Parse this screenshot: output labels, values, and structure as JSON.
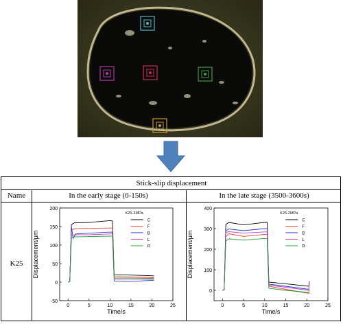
{
  "photo": {
    "markers": [
      {
        "id": "top",
        "color": "#4fb8c8"
      },
      {
        "id": "left",
        "color": "#b03aa8"
      },
      {
        "id": "center",
        "color": "#cc2b5a"
      },
      {
        "id": "right",
        "color": "#3f9b4d"
      },
      {
        "id": "bottom",
        "color": "#c79a3c"
      }
    ]
  },
  "arrow": {
    "color": "#4f81bd",
    "icon": "down-arrow-icon"
  },
  "table": {
    "title": "Stick-slip displacement",
    "col_name": "Name",
    "col_early": "In the early stage (0-150s)",
    "col_late": "In the late stage (3500-3600s)",
    "row_name": "K25"
  },
  "chart_data": [
    {
      "type": "line",
      "annotation": "K25-2MPa",
      "xlabel": "Time/s",
      "ylabel": "Displacement/μm",
      "xlim": [
        -2,
        25
      ],
      "ylim": [
        -50,
        200
      ],
      "xticks": [
        "0",
        "5",
        "10",
        "15",
        "20",
        "25"
      ],
      "yticks": [
        "-50",
        "0",
        "50",
        "100",
        "150",
        "200"
      ],
      "series": [
        {
          "name": "C",
          "color": "#000000",
          "points": [
            [
              0,
              0
            ],
            [
              0.4,
              2
            ],
            [
              0.8,
              155
            ],
            [
              1.5,
              160
            ],
            [
              5,
              161
            ],
            [
              10,
              166
            ],
            [
              10.6,
              165
            ],
            [
              11,
              20
            ],
            [
              15,
              19
            ],
            [
              20.5,
              17
            ]
          ]
        },
        {
          "name": "F",
          "color": "#e8402a",
          "points": [
            [
              0,
              0
            ],
            [
              0.4,
              2
            ],
            [
              0.8,
              140
            ],
            [
              1.5,
              144
            ],
            [
              5,
              145
            ],
            [
              10,
              146
            ],
            [
              10.6,
              146
            ],
            [
              11,
              15
            ],
            [
              15,
              14
            ],
            [
              20.5,
              12
            ]
          ]
        },
        {
          "name": "B",
          "color": "#2437d4",
          "points": [
            [
              0,
              0
            ],
            [
              0.4,
              2
            ],
            [
              0.8,
              150
            ],
            [
              1.2,
              118
            ],
            [
              1.8,
              130
            ],
            [
              5,
              132
            ],
            [
              10,
              135
            ],
            [
              10.6,
              135
            ],
            [
              11,
              3
            ],
            [
              15,
              2
            ],
            [
              20.5,
              5
            ]
          ]
        },
        {
          "name": "L",
          "color": "#c23fc2",
          "points": [
            [
              0,
              0
            ],
            [
              0.4,
              2
            ],
            [
              0.8,
              125
            ],
            [
              1.5,
              128
            ],
            [
              5,
              128
            ],
            [
              10,
              130
            ],
            [
              10.6,
              130
            ],
            [
              11,
              8
            ],
            [
              15,
              8
            ],
            [
              20.5,
              7
            ]
          ]
        },
        {
          "name": "R",
          "color": "#1f9a2e",
          "points": [
            [
              0,
              0
            ],
            [
              0.4,
              2
            ],
            [
              0.8,
              120
            ],
            [
              1.5,
              122
            ],
            [
              5,
              123
            ],
            [
              10,
              124
            ],
            [
              10.6,
              124
            ],
            [
              11,
              11
            ],
            [
              15,
              11
            ],
            [
              20.5,
              10
            ]
          ]
        }
      ]
    },
    {
      "type": "line",
      "annotation": "K25-2MPa",
      "xlabel": "Time/s",
      "ylabel": "Displacement/μm",
      "xlim": [
        -2,
        25
      ],
      "ylim": [
        -50,
        400
      ],
      "xticks": [
        "0",
        "5",
        "10",
        "15",
        "20",
        "25"
      ],
      "yticks": [
        "0",
        "100",
        "200",
        "300",
        "400"
      ],
      "series": [
        {
          "name": "C",
          "color": "#000000",
          "points": [
            [
              0,
              0
            ],
            [
              0.4,
              3
            ],
            [
              0.8,
              320
            ],
            [
              1.5,
              330
            ],
            [
              5,
              318
            ],
            [
              10,
              330
            ],
            [
              10.6,
              330
            ],
            [
              11,
              40
            ],
            [
              15,
              32
            ],
            [
              20.5,
              20
            ],
            [
              20.6,
              45
            ]
          ]
        },
        {
          "name": "F",
          "color": "#e8402a",
          "points": [
            [
              0,
              0
            ],
            [
              0.4,
              3
            ],
            [
              0.8,
              260
            ],
            [
              1.5,
              275
            ],
            [
              5,
              262
            ],
            [
              10,
              272
            ],
            [
              10.6,
              272
            ],
            [
              11,
              20
            ],
            [
              15,
              5
            ],
            [
              20.5,
              -15
            ],
            [
              20.6,
              35
            ]
          ]
        },
        {
          "name": "B",
          "color": "#2437d4",
          "points": [
            [
              0,
              0
            ],
            [
              0.4,
              3
            ],
            [
              0.8,
              290
            ],
            [
              1.5,
              298
            ],
            [
              5,
              290
            ],
            [
              10,
              300
            ],
            [
              10.6,
              300
            ],
            [
              11,
              30
            ],
            [
              15,
              20
            ],
            [
              20.5,
              5
            ]
          ]
        },
        {
          "name": "L",
          "color": "#c23fc2",
          "points": [
            [
              0,
              0
            ],
            [
              0.4,
              3
            ],
            [
              0.8,
              280
            ],
            [
              1.5,
              285
            ],
            [
              5,
              278
            ],
            [
              10,
              284
            ],
            [
              10.6,
              284
            ],
            [
              11,
              25
            ],
            [
              15,
              15
            ],
            [
              20.5,
              0
            ],
            [
              20.6,
              45
            ]
          ]
        },
        {
          "name": "R",
          "color": "#1f9a2e",
          "points": [
            [
              0,
              0
            ],
            [
              0.4,
              3
            ],
            [
              0.8,
              240
            ],
            [
              1.5,
              250
            ],
            [
              5,
              244
            ],
            [
              10,
              252
            ],
            [
              10.6,
              252
            ],
            [
              11,
              10
            ],
            [
              15,
              0
            ],
            [
              20.5,
              -10
            ]
          ]
        }
      ]
    }
  ]
}
